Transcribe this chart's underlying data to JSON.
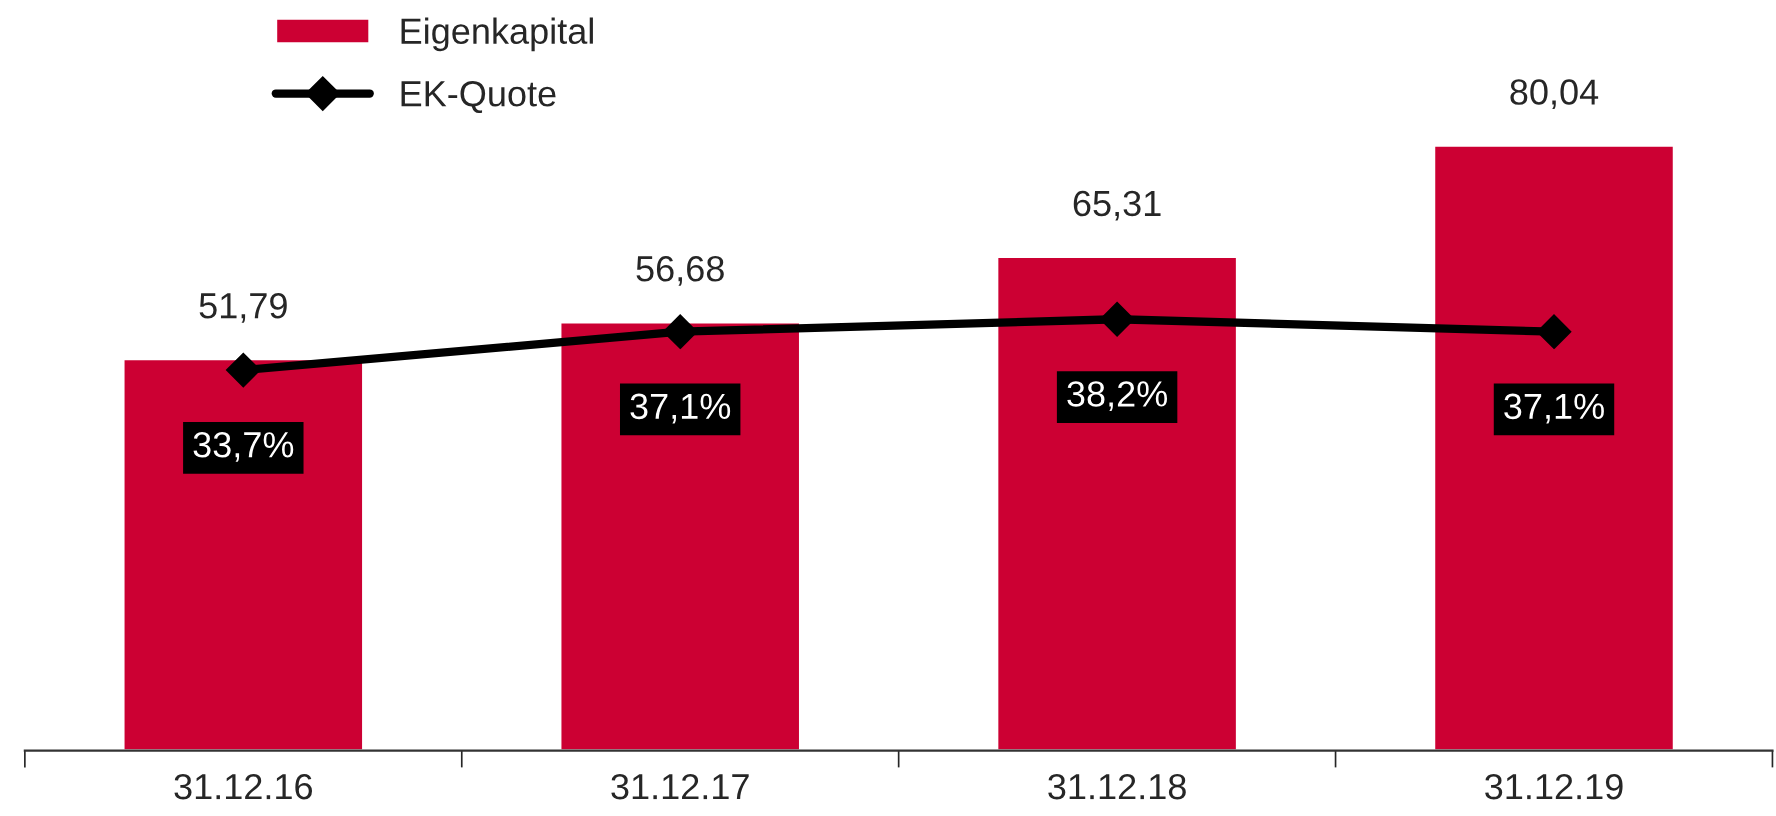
{
  "chart_data": {
    "type": "bar",
    "categories": [
      "31.12.16",
      "31.12.17",
      "31.12.18",
      "31.12.19"
    ],
    "series": [
      {
        "name": "Eigenkapital",
        "color": "#cc0033",
        "values": [
          51.79,
          56.68,
          65.31,
          80.04
        ],
        "value_labels": [
          "51,79",
          "56,68",
          "65,31",
          "80,04"
        ]
      },
      {
        "name": "EK-Quote",
        "type": "line",
        "axis": "y2",
        "color": "#000000",
        "values": [
          33.7,
          37.1,
          38.2,
          37.1
        ],
        "value_labels": [
          "33,7%",
          "37,1%",
          "38,2%",
          "37,1%"
        ]
      }
    ],
    "tick_labels": "x",
    "legend": "top left",
    "marker": "diamond",
    "line_style": "solid",
    "grid": false
  }
}
